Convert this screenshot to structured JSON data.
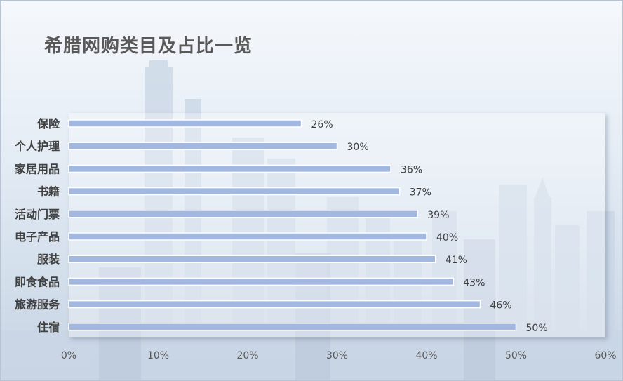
{
  "chart_data": {
    "type": "bar",
    "orientation": "horizontal",
    "title": "希腊网购类目及占比一览",
    "categories": [
      "保险",
      "个人护理",
      "家居用品",
      "书籍",
      "活动门票",
      "电子产品",
      "服装",
      "即食食品",
      "旅游服务",
      "住宿"
    ],
    "values": [
      26,
      30,
      36,
      37,
      39,
      40,
      41,
      43,
      46,
      50
    ],
    "value_labels": [
      "26%",
      "30%",
      "36%",
      "37%",
      "39%",
      "40%",
      "41%",
      "43%",
      "46%",
      "50%"
    ],
    "xlim": [
      0,
      60
    ],
    "x_ticks": [
      "0%",
      "10%",
      "20%",
      "30%",
      "40%",
      "50%",
      "60%"
    ],
    "xlabel": "",
    "ylabel": "",
    "grid": false,
    "legend": "none",
    "bar_color": "#a3b8e0"
  }
}
